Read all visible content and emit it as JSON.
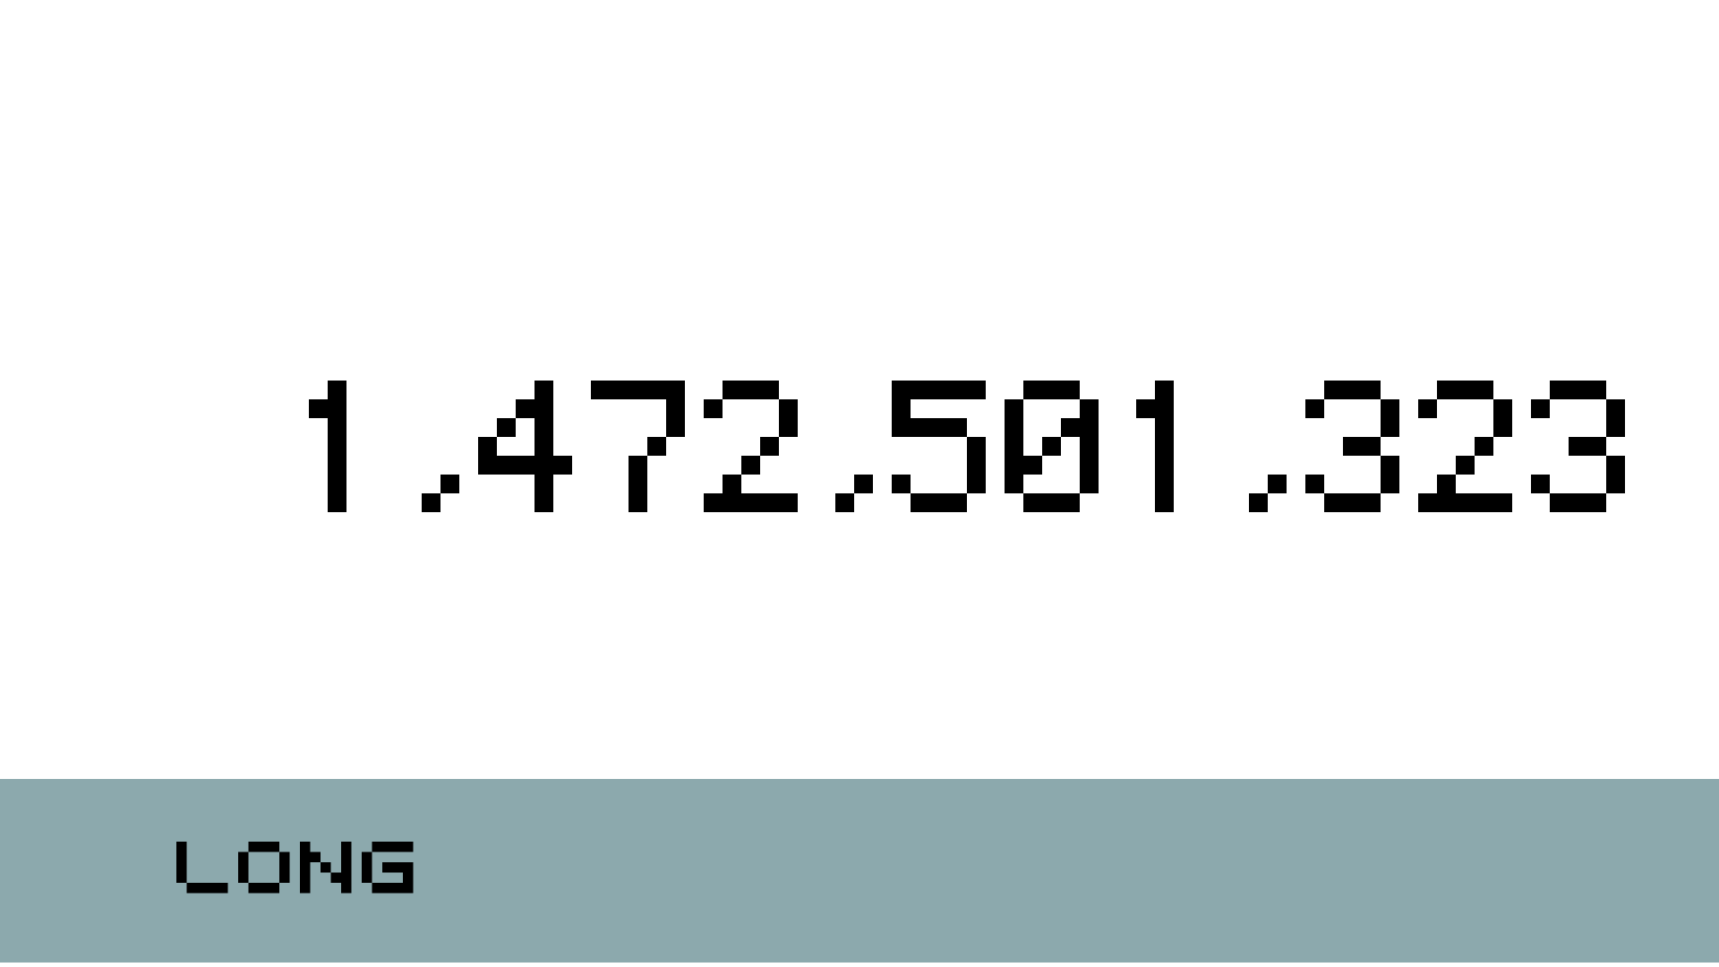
{
  "display": {
    "value": "1,472,501,323"
  },
  "footer": {
    "label": "LONG"
  },
  "colors": {
    "background": "#ffffff",
    "footer_band": "#8ca9ad",
    "glyph": "#000000"
  }
}
